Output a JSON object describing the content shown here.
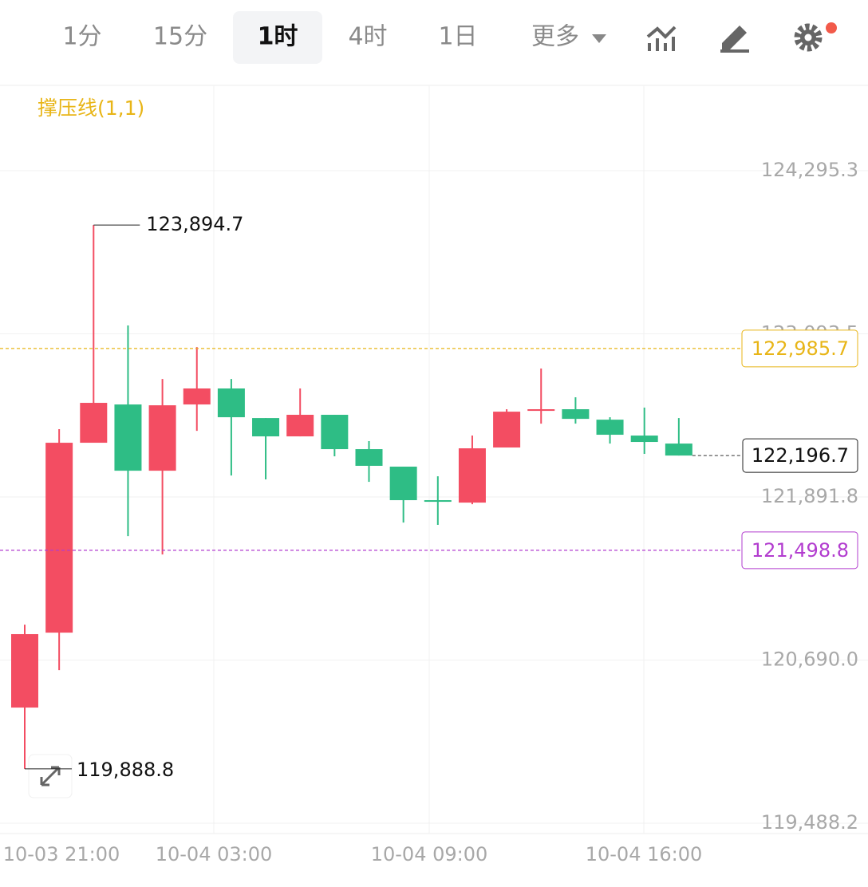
{
  "toolbar": {
    "intervals": [
      "1分",
      "15分",
      "1时",
      "4时",
      "1日"
    ],
    "active_interval": 2,
    "more": "更多"
  },
  "chart_data": {
    "type": "candlestick",
    "indicator": "撑压线(1,1)",
    "x_labels": [
      "10-03 21:00",
      "10-04 03:00",
      "10-04 09:00",
      "10-04 16:00"
    ],
    "open": [
      120340,
      120892,
      122291,
      122573,
      122085,
      122573,
      122691,
      122473,
      122338,
      122497,
      122244,
      122115,
      121868,
      121850,
      122256,
      122526,
      122538,
      122461,
      122344,
      122285
    ],
    "high": [
      120951,
      122391,
      123894.7,
      123155,
      122761,
      122996,
      122761,
      122473,
      122691,
      122497,
      122303,
      122115,
      122044,
      122344,
      122538,
      122838,
      122626,
      122479,
      122550,
      122473
    ],
    "low": [
      119888.8,
      120616,
      122291,
      121603,
      121468,
      122379,
      122050,
      122021,
      122338,
      122191,
      122003,
      121703,
      121686,
      121838,
      122256,
      122432,
      122432,
      122285,
      122209,
      122196.7
    ],
    "close": [
      120881,
      122291,
      122585,
      122085,
      122567,
      122691,
      122479,
      122338,
      122497,
      122244,
      122121,
      121868,
      121856,
      122250,
      122520,
      122538,
      122467,
      122350,
      122297,
      122196.7
    ],
    "up_color": "#f34d62",
    "down_color": "#2ebd85",
    "ylim": [
      119411.8,
      124924.1
    ],
    "yticks": [
      {
        "value": 119488.2,
        "label": "119,488.2"
      },
      {
        "value": 120690.0,
        "label": "120,690.0"
      },
      {
        "value": 121891.8,
        "label": "121,891.8"
      },
      {
        "value": 123093.5,
        "label": "123,093.5"
      },
      {
        "value": 124295.3,
        "label": "124,295.3"
      }
    ],
    "grid": true,
    "high_label": "123,894.7",
    "low_label": "119,888.8",
    "last_label": "122,196.7",
    "price_lines": [
      {
        "value": 122985.7,
        "label": "122,985.7",
        "color": "#e8b517"
      },
      {
        "value": 121498.8,
        "label": "121,498.8",
        "color": "#b23ccf"
      }
    ]
  }
}
